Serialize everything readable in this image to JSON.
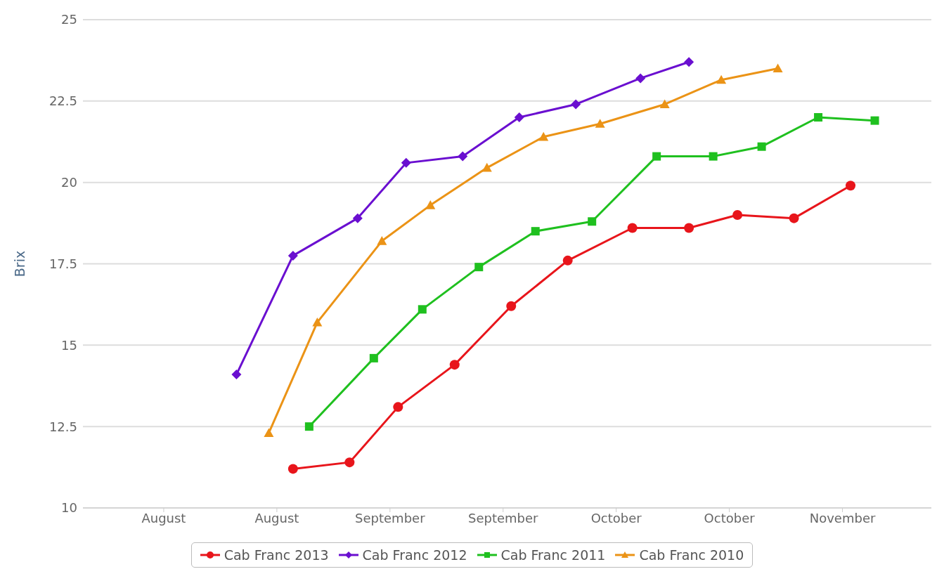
{
  "chart_data": {
    "type": "line",
    "ylabel": "Brix",
    "xlim": [
      "--07-31",
      "--11-13"
    ],
    "xticks": [
      {
        "value": "--08-10",
        "label": "August"
      },
      {
        "value": "--08-24",
        "label": "August"
      },
      {
        "value": "--09-07",
        "label": "September"
      },
      {
        "value": "--09-21",
        "label": "September"
      },
      {
        "value": "--10-05",
        "label": "October"
      },
      {
        "value": "--10-19",
        "label": "October"
      },
      {
        "value": "--11-02",
        "label": "November"
      }
    ],
    "ylim": [
      10,
      25
    ],
    "yticks": [
      10,
      12.5,
      15,
      17.5,
      20,
      22.5,
      25
    ],
    "grid": "y",
    "legend": "bottom",
    "line_style": "solid",
    "series": [
      {
        "name": "Cab Franc 2013",
        "color": "#e8151b",
        "marker": "circle",
        "x": [
          "--08-26",
          "--09-02",
          "--09-08",
          "--09-15",
          "--09-22",
          "--09-29",
          "--10-07",
          "--10-14",
          "--10-20",
          "--10-27",
          "--11-03"
        ],
        "values": [
          11.2,
          11.4,
          13.1,
          14.4,
          16.2,
          17.6,
          18.6,
          18.6,
          19.0,
          18.9,
          19.9
        ]
      },
      {
        "name": "Cab Franc 2012",
        "color": "#6a0fd0",
        "marker": "diamond",
        "x": [
          "--08-19",
          "--08-26",
          "--09-03",
          "--09-09",
          "--09-16",
          "--09-23",
          "--09-30",
          "--10-08",
          "--10-14"
        ],
        "values": [
          14.1,
          17.75,
          18.9,
          20.6,
          20.8,
          22.0,
          22.4,
          23.2,
          23.7
        ]
      },
      {
        "name": "Cab Franc 2011",
        "color": "#1fc01f",
        "marker": "square",
        "x": [
          "--08-28",
          "--09-05",
          "--09-11",
          "--09-18",
          "--09-25",
          "--10-02",
          "--10-10",
          "--10-17",
          "--10-23",
          "--10-30",
          "--11-06"
        ],
        "values": [
          12.5,
          14.6,
          16.1,
          17.4,
          18.5,
          18.8,
          20.8,
          20.8,
          21.1,
          22.0,
          21.9
        ]
      },
      {
        "name": "Cab Franc 2010",
        "color": "#eb9316",
        "marker": "triangle",
        "x": [
          "--08-23",
          "--08-29",
          "--09-06",
          "--09-12",
          "--09-19",
          "--09-26",
          "--10-03",
          "--10-11",
          "--10-18",
          "--10-25"
        ],
        "values": [
          12.3,
          15.7,
          18.2,
          19.3,
          20.45,
          21.4,
          21.8,
          22.4,
          23.15,
          23.5
        ]
      }
    ]
  }
}
